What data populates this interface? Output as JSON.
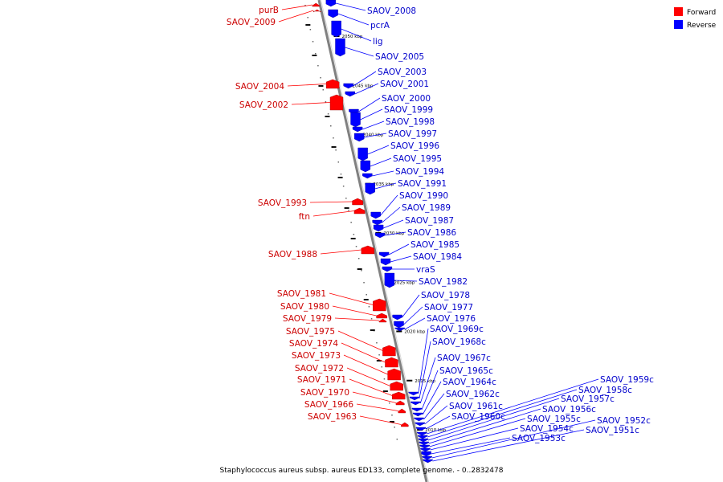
{
  "caption": "Staphylococcus aureus subsp. aureus ED133, complete genome. - 0..2832478",
  "legend": {
    "forward_label": "Forward",
    "reverse_label": "Reverse",
    "forward_color": "#ff0000",
    "reverse_color": "#0000ff"
  },
  "colors": {
    "backbone": "#808080",
    "forward_text": "#cc0000",
    "reverse_text": "#0000cc"
  },
  "scale_marks": [
    {
      "label": "2050 kbp",
      "kb": 2050
    },
    {
      "label": "2045 kbp",
      "kb": 2045
    },
    {
      "label": "2040 kbp",
      "kb": 2040
    },
    {
      "label": "2035 kbp",
      "kb": 2035
    },
    {
      "label": "2030 kbp",
      "kb": 2030
    },
    {
      "label": "2025 kbp",
      "kb": 2025
    },
    {
      "label": "2020 kbp",
      "kb": 2020
    },
    {
      "label": "2015 kbp",
      "kb": 2015
    },
    {
      "label": "2010 kbp",
      "kb": 2010
    }
  ],
  "forward_genes": [
    {
      "name": "purB"
    },
    {
      "name": "SAOV_2009"
    },
    {
      "name": "SAOV_2004"
    },
    {
      "name": "SAOV_2002"
    },
    {
      "name": "SAOV_1993"
    },
    {
      "name": "ftn"
    },
    {
      "name": "SAOV_1988"
    },
    {
      "name": "SAOV_1981"
    },
    {
      "name": "SAOV_1980"
    },
    {
      "name": "SAOV_1979"
    },
    {
      "name": "SAOV_1975"
    },
    {
      "name": "SAOV_1974"
    },
    {
      "name": "SAOV_1973"
    },
    {
      "name": "SAOV_1972"
    },
    {
      "name": "SAOV_1971"
    },
    {
      "name": "SAOV_1970"
    },
    {
      "name": "SAOV_1966"
    },
    {
      "name": "SAOV_1963"
    }
  ],
  "reverse_genes": [
    {
      "name": "SAOV_2008"
    },
    {
      "name": "pcrA"
    },
    {
      "name": "lig"
    },
    {
      "name": "SAOV_2005"
    },
    {
      "name": "SAOV_2003"
    },
    {
      "name": "SAOV_2001"
    },
    {
      "name": "SAOV_2000"
    },
    {
      "name": "SAOV_1999"
    },
    {
      "name": "SAOV_1998"
    },
    {
      "name": "SAOV_1997"
    },
    {
      "name": "SAOV_1996"
    },
    {
      "name": "SAOV_1995"
    },
    {
      "name": "SAOV_1994"
    },
    {
      "name": "SAOV_1991"
    },
    {
      "name": "SAOV_1990"
    },
    {
      "name": "SAOV_1989"
    },
    {
      "name": "SAOV_1987"
    },
    {
      "name": "SAOV_1986"
    },
    {
      "name": "SAOV_1985"
    },
    {
      "name": "SAOV_1984"
    },
    {
      "name": "vraS"
    },
    {
      "name": "SAOV_1982"
    },
    {
      "name": "SAOV_1978"
    },
    {
      "name": "SAOV_1977"
    },
    {
      "name": "SAOV_1976"
    },
    {
      "name": "SAOV_1969c"
    },
    {
      "name": "SAOV_1968c"
    },
    {
      "name": "SAOV_1967c"
    },
    {
      "name": "SAOV_1965c"
    },
    {
      "name": "SAOV_1964c"
    },
    {
      "name": "SAOV_1962c"
    },
    {
      "name": "SAOV_1961c"
    },
    {
      "name": "SAOV_1960c"
    },
    {
      "name": "SAOV_1959c"
    },
    {
      "name": "SAOV_1958c"
    },
    {
      "name": "SAOV_1957c"
    },
    {
      "name": "SAOV_1956c"
    },
    {
      "name": "SAOV_1955c"
    },
    {
      "name": "SAOV_1954c"
    },
    {
      "name": "SAOV_1953c"
    },
    {
      "name": "SAOV_1952c"
    },
    {
      "name": "SAOV_1951c"
    }
  ]
}
